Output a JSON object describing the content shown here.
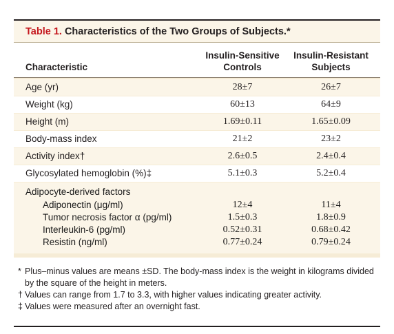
{
  "table": {
    "number": "Table 1.",
    "title": "Characteristics of the Two Groups of Subjects.*",
    "headers": {
      "characteristic": "Characteristic",
      "col1_line1": "Insulin-Sensitive",
      "col1_line2": "Controls",
      "col2_line1": "Insulin-Resistant",
      "col2_line2": "Subjects"
    },
    "rows": [
      {
        "label": "Age (yr)",
        "col1": "28±7",
        "col2": "26±7"
      },
      {
        "label": "Weight (kg)",
        "col1": "60±13",
        "col2": "64±9"
      },
      {
        "label": "Height (m)",
        "col1": "1.69±0.11",
        "col2": "1.65±0.09"
      },
      {
        "label": "Body-mass index",
        "col1": "21±2",
        "col2": "23±2"
      },
      {
        "label": "Activity index†",
        "col1": "2.6±0.5",
        "col2": "2.4±0.4"
      },
      {
        "label": "Glycosylated hemoglobin (%)‡",
        "col1": "5.1±0.3",
        "col2": "5.2±0.4"
      }
    ],
    "group": {
      "label": "Adipocyte-derived factors",
      "rows": [
        {
          "label": "Adiponectin (μg/ml)",
          "col1": "12±4",
          "col2": "11±4"
        },
        {
          "label": "Tumor necrosis factor α (pg/ml)",
          "col1": "1.5±0.3",
          "col2": "1.8±0.9"
        },
        {
          "label": "Interleukin-6 (pg/ml)",
          "col1": "0.52±0.31",
          "col2": "0.68±0.42"
        },
        {
          "label": "Resistin (ng/ml)",
          "col1": "0.77±0.24",
          "col2": "0.79±0.24"
        }
      ]
    },
    "footnotes": [
      {
        "mark": "*",
        "text": "Plus–minus values are means ±SD. The body-mass index is the weight in kilograms divided by the square of the height in meters."
      },
      {
        "mark": "†",
        "text": "Values can range from 1.7 to 3.3, with higher values indicating greater activity."
      },
      {
        "mark": "‡",
        "text": "Values were measured after an overnight fast."
      }
    ],
    "colors": {
      "title_number": "#c4161c",
      "band": "#f6ecd6",
      "band_light": "#fbf5e8"
    }
  }
}
